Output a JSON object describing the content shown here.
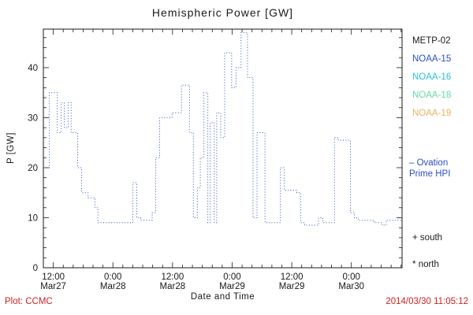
{
  "title": "Hemispheric Power [GW]",
  "xlabel": "Date and Time",
  "ylabel": "P [GW]",
  "footer": {
    "plot_credit": "Plot: CCMC",
    "timestamp": "2014/03/30 11:05:12",
    "color": "#d02020"
  },
  "legend": {
    "satellites": [
      {
        "label": "METP-02",
        "color": "#1a1a1a"
      },
      {
        "label": "NOAA-15",
        "color": "#2a4fc0"
      },
      {
        "label": "NOAA-16",
        "color": "#2bc0d8"
      },
      {
        "label": "NOAA-18",
        "color": "#63d9a0"
      },
      {
        "label": "NOAA-19",
        "color": "#e6b25f"
      }
    ],
    "model": {
      "line1": "– Ovation",
      "line2": "Prime HPI",
      "color": "#2a4fc0"
    },
    "markers": [
      {
        "symbol": "+",
        "label": "south"
      },
      {
        "symbol": "*",
        "label": "north"
      }
    ]
  },
  "chart_data": {
    "type": "line",
    "line_style": "dotted-step",
    "line_color": "#2a4fc0",
    "title": "Hemispheric Power [GW]",
    "xlabel": "Date and Time",
    "ylabel": "P [GW]",
    "x_unit": "hours after 2014-03-27 10:00 UT",
    "xlim": [
      0,
      72.2
    ],
    "ylim": [
      0,
      47.7
    ],
    "y_ticks": [
      0,
      10,
      20,
      30,
      40
    ],
    "x_ticks": [
      {
        "t": 2,
        "time": "12:00",
        "date": "Mar27"
      },
      {
        "t": 14,
        "time": "0:00",
        "date": "Mar28"
      },
      {
        "t": 26,
        "time": "12:00",
        "date": "Mar28"
      },
      {
        "t": 38,
        "time": "0:00",
        "date": "Mar29"
      },
      {
        "t": 50,
        "time": "12:00",
        "date": "Mar29"
      },
      {
        "t": 62,
        "time": "0:00",
        "date": "Mar30"
      }
    ],
    "steps": [
      [
        0.0,
        20
      ],
      [
        1.2,
        35
      ],
      [
        2.8,
        27
      ],
      [
        3.6,
        33
      ],
      [
        4.2,
        28
      ],
      [
        5.0,
        33
      ],
      [
        5.6,
        27
      ],
      [
        6.9,
        20
      ],
      [
        7.7,
        15
      ],
      [
        9.0,
        14
      ],
      [
        10.4,
        12
      ],
      [
        11.0,
        9
      ],
      [
        18.0,
        17
      ],
      [
        18.8,
        10
      ],
      [
        19.6,
        9.5
      ],
      [
        21.9,
        11
      ],
      [
        22.6,
        22
      ],
      [
        23.4,
        30
      ],
      [
        25.9,
        31
      ],
      [
        27.8,
        36.5
      ],
      [
        29.4,
        27
      ],
      [
        30.2,
        10
      ],
      [
        31.0,
        16
      ],
      [
        31.6,
        22
      ],
      [
        32.3,
        35
      ],
      [
        33.1,
        9
      ],
      [
        33.6,
        29
      ],
      [
        34.4,
        9
      ],
      [
        34.9,
        31
      ],
      [
        35.7,
        26
      ],
      [
        36.5,
        43
      ],
      [
        37.9,
        36
      ],
      [
        38.8,
        40
      ],
      [
        39.8,
        47
      ],
      [
        41.1,
        38
      ],
      [
        42.2,
        10
      ],
      [
        43.0,
        27
      ],
      [
        44.6,
        9
      ],
      [
        47.7,
        20
      ],
      [
        48.5,
        15.5
      ],
      [
        51.0,
        15
      ],
      [
        51.8,
        9
      ],
      [
        52.6,
        8.5
      ],
      [
        55.4,
        10
      ],
      [
        56.2,
        9
      ],
      [
        58.6,
        26
      ],
      [
        59.4,
        25.5
      ],
      [
        61.8,
        11
      ],
      [
        62.6,
        10
      ],
      [
        63.4,
        9.5
      ],
      [
        66.6,
        9
      ],
      [
        68.2,
        8.5
      ],
      [
        69.0,
        9.5
      ]
    ]
  }
}
